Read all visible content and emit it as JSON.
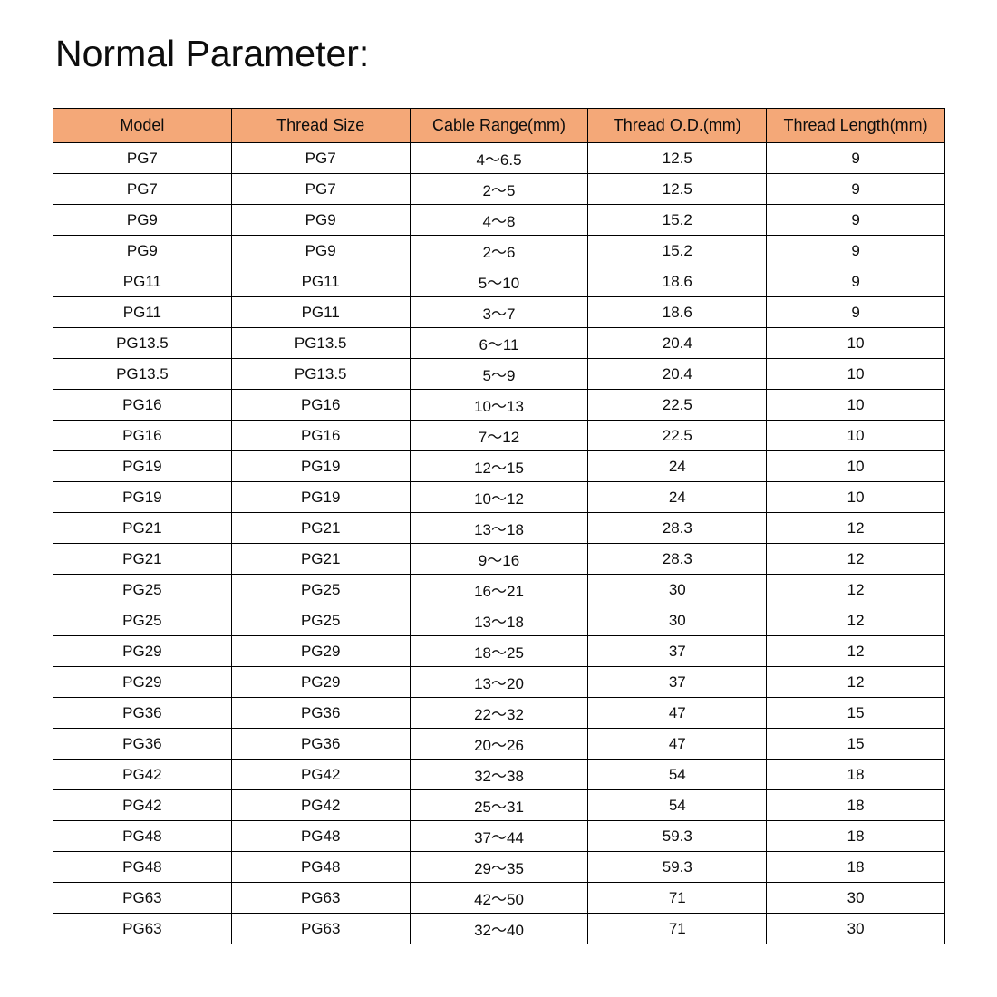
{
  "page": {
    "title": "Normal Parameter:"
  },
  "colors": {
    "header_bg": "#F4A878",
    "border": "#000000",
    "text": "#0d0d0d",
    "row_bg": "#ffffff"
  },
  "table": {
    "headers": [
      "Model",
      "Thread Size",
      "Cable Range(mm)",
      "Thread O.D.(mm)",
      "Thread Length(mm)"
    ],
    "rows": [
      [
        "PG7",
        "PG7",
        "4～6.5",
        "12.5",
        "9"
      ],
      [
        "PG7",
        "PG7",
        "2～5",
        "12.5",
        "9"
      ],
      [
        "PG9",
        "PG9",
        "4～8",
        "15.2",
        "9"
      ],
      [
        "PG9",
        "PG9",
        "2～6",
        "15.2",
        "9"
      ],
      [
        "PG11",
        "PG11",
        "5～10",
        "18.6",
        "9"
      ],
      [
        "PG11",
        "PG11",
        "3～7",
        "18.6",
        "9"
      ],
      [
        "PG13.5",
        "PG13.5",
        "6～11",
        "20.4",
        "10"
      ],
      [
        "PG13.5",
        "PG13.5",
        "5～9",
        "20.4",
        "10"
      ],
      [
        "PG16",
        "PG16",
        "10～13",
        "22.5",
        "10"
      ],
      [
        "PG16",
        "PG16",
        "7～12",
        "22.5",
        "10"
      ],
      [
        "PG19",
        "PG19",
        "12～15",
        "24",
        "10"
      ],
      [
        "PG19",
        "PG19",
        "10～12",
        "24",
        "10"
      ],
      [
        "PG21",
        "PG21",
        "13～18",
        "28.3",
        "12"
      ],
      [
        "PG21",
        "PG21",
        "9～16",
        "28.3",
        "12"
      ],
      [
        "PG25",
        "PG25",
        "16～21",
        "30",
        "12"
      ],
      [
        "PG25",
        "PG25",
        "13～18",
        "30",
        "12"
      ],
      [
        "PG29",
        "PG29",
        "18～25",
        "37",
        "12"
      ],
      [
        "PG29",
        "PG29",
        "13～20",
        "37",
        "12"
      ],
      [
        "PG36",
        "PG36",
        "22～32",
        "47",
        "15"
      ],
      [
        "PG36",
        "PG36",
        "20～26",
        "47",
        "15"
      ],
      [
        "PG42",
        "PG42",
        "32～38",
        "54",
        "18"
      ],
      [
        "PG42",
        "PG42",
        "25～31",
        "54",
        "18"
      ],
      [
        "PG48",
        "PG48",
        "37～44",
        "59.3",
        "18"
      ],
      [
        "PG48",
        "PG48",
        "29～35",
        "59.3",
        "18"
      ],
      [
        "PG63",
        "PG63",
        "42～50",
        "71",
        "30"
      ],
      [
        "PG63",
        "PG63",
        "32～40",
        "71",
        "30"
      ]
    ]
  }
}
